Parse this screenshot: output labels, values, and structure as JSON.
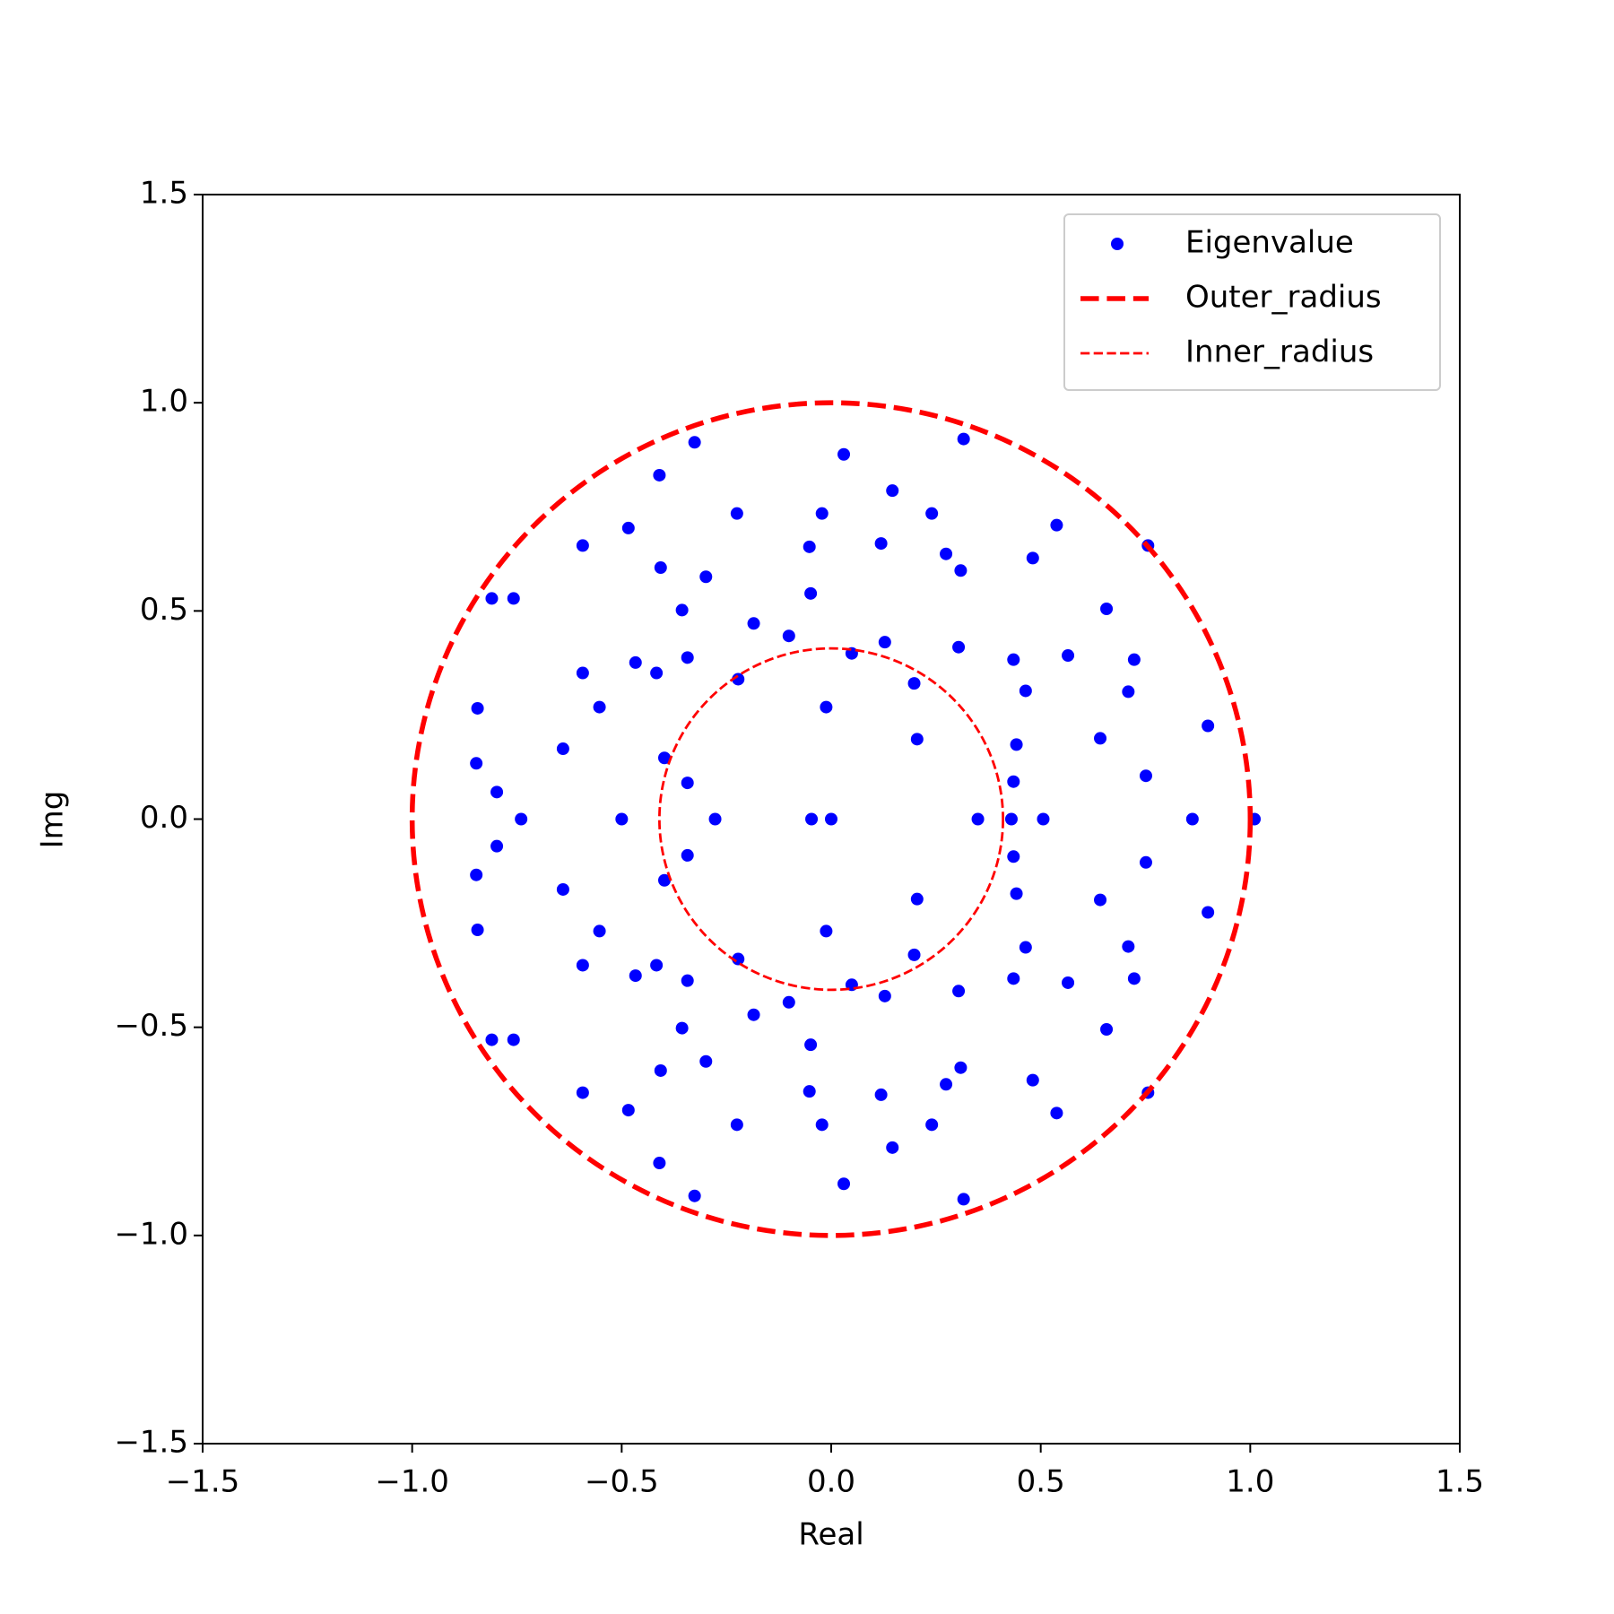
{
  "chart_data": {
    "type": "scatter",
    "xlabel": "Real",
    "ylabel": "Img",
    "xlim": [
      -1.5,
      1.5
    ],
    "ylim": [
      -1.5,
      1.5
    ],
    "xticks": [
      {
        "value": -1.5,
        "label": "−1.5"
      },
      {
        "value": -1.0,
        "label": "−1.0"
      },
      {
        "value": -0.5,
        "label": "−0.5"
      },
      {
        "value": 0,
        "label": "0.0"
      },
      0.5,
      {
        "value": 1.0,
        "label": "1.0"
      },
      1.5
    ],
    "yticks": [
      {
        "value": -1.5,
        "label": "−1.5"
      },
      {
        "value": -1.0,
        "label": "−1.0"
      },
      {
        "value": -0.5,
        "label": "−0.5"
      },
      {
        "value": 0,
        "label": "0.0"
      },
      0.5,
      {
        "value": 1.0,
        "label": "1.0"
      },
      1.5
    ],
    "legend": "upper right",
    "series": [
      {
        "name": "Eigenvalue",
        "color": "#0000ff",
        "x": [
          -0.74,
          -0.5,
          -0.277,
          -0.047,
          0,
          0.35,
          0.43,
          0.506,
          0.862,
          1.01,
          -0.326,
          0.03,
          0.316,
          -0.41,
          0.146,
          -0.225,
          -0.022,
          0.24,
          -0.593,
          -0.484,
          0.538,
          0.756,
          -0.052,
          0.119,
          0.274,
          0.309,
          0.481,
          -0.407,
          -0.299,
          -0.81,
          -0.758,
          -0.049,
          0.657,
          -0.356,
          -0.185,
          -0.101,
          0.128,
          0.304,
          0.049,
          -0.343,
          -0.467,
          0.435,
          0.565,
          0.723,
          -0.417,
          -0.593,
          -0.222,
          0.198,
          0.464,
          0.709,
          -0.553,
          -0.012,
          -0.844,
          -0.64,
          0.205,
          0.642,
          0.442,
          0.899,
          -0.847,
          -0.398,
          -0.343,
          0.435,
          0.751,
          -0.798,
          -0.326,
          0.03,
          0.316,
          -0.41,
          0.146,
          -0.225,
          -0.022,
          0.24,
          -0.593,
          -0.484,
          0.538,
          0.756,
          -0.052,
          0.119,
          0.274,
          0.309,
          0.481,
          -0.407,
          -0.299,
          -0.81,
          -0.758,
          -0.049,
          0.657,
          -0.356,
          -0.185,
          -0.101,
          0.128,
          0.304,
          0.049,
          -0.343,
          -0.467,
          0.435,
          0.565,
          0.723,
          -0.417,
          -0.593,
          -0.222,
          0.198,
          0.464,
          0.709,
          -0.553,
          -0.012,
          -0.844,
          -0.64,
          0.205,
          0.642,
          0.442,
          0.899,
          -0.847,
          -0.398,
          -0.343,
          0.435,
          0.751,
          -0.798
        ],
        "y": [
          0,
          0,
          0,
          0,
          0,
          0,
          0,
          0,
          0,
          0,
          0.905,
          0.876,
          0.913,
          0.826,
          0.789,
          0.734,
          0.734,
          0.734,
          0.657,
          0.699,
          0.706,
          0.657,
          0.654,
          0.662,
          0.637,
          0.597,
          0.627,
          0.604,
          0.582,
          0.53,
          0.53,
          0.542,
          0.505,
          0.502,
          0.47,
          0.44,
          0.425,
          0.413,
          0.398,
          0.388,
          0.376,
          0.383,
          0.393,
          0.383,
          0.351,
          0.351,
          0.336,
          0.326,
          0.308,
          0.306,
          0.269,
          0.269,
          0.266,
          0.169,
          0.192,
          0.194,
          0.179,
          0.224,
          0.134,
          0.147,
          0.087,
          0.09,
          0.104,
          0.065,
          -0.905,
          -0.876,
          -0.913,
          -0.826,
          -0.789,
          -0.734,
          -0.734,
          -0.734,
          -0.657,
          -0.699,
          -0.706,
          -0.657,
          -0.654,
          -0.662,
          -0.637,
          -0.597,
          -0.627,
          -0.604,
          -0.582,
          -0.53,
          -0.53,
          -0.542,
          -0.505,
          -0.502,
          -0.47,
          -0.44,
          -0.425,
          -0.413,
          -0.398,
          -0.388,
          -0.376,
          -0.383,
          -0.393,
          -0.383,
          -0.351,
          -0.351,
          -0.336,
          -0.326,
          -0.308,
          -0.306,
          -0.269,
          -0.269,
          -0.266,
          -0.169,
          -0.192,
          -0.194,
          -0.179,
          -0.224,
          -0.134,
          -0.147,
          -0.087,
          -0.09,
          -0.104,
          -0.065
        ]
      },
      {
        "name": "Outer_radius",
        "color": "#ff0000",
        "radius": 1.0,
        "linewidth": 3
      },
      {
        "name": "Inner_radius",
        "color": "#ff0000",
        "radius": 0.41,
        "linewidth": 1.5
      }
    ]
  }
}
